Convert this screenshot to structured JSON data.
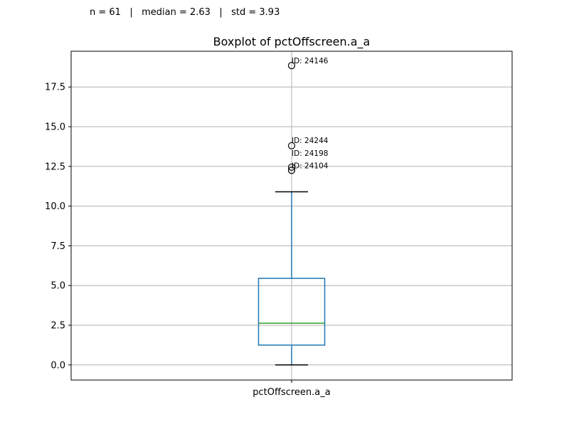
{
  "stats_line": "n = 61   |   median = 2.63   |   std = 3.93",
  "chart_data": {
    "type": "boxplot",
    "title": "Boxplot of pctOffscreen.a_a",
    "categories": [
      "pctOffscreen.a_a"
    ],
    "ylim": [
      -0.95,
      19.75
    ],
    "yticks": [
      0.0,
      2.5,
      5.0,
      7.5,
      10.0,
      12.5,
      15.0,
      17.5
    ],
    "ytick_labels": [
      "0.0",
      "2.5",
      "5.0",
      "7.5",
      "10.0",
      "12.5",
      "15.0",
      "17.5"
    ],
    "grid": true,
    "box": {
      "whisker_low": 0.0,
      "q1": 1.25,
      "median": 2.63,
      "q3": 5.45,
      "whisker_high": 10.9
    },
    "outliers": [
      {
        "value": 18.85,
        "label": "ID: 24146"
      },
      {
        "value": 13.8,
        "label": "ID: 24244"
      },
      {
        "value": 12.45,
        "label": "ID: 24198"
      },
      {
        "value": 12.25,
        "label": "ID: 24104"
      }
    ],
    "colors": {
      "box": "#1f77b4",
      "median": "#2ca02c",
      "whisker": "#1f77b4",
      "cap": "#000000",
      "grid": "#b0b0b0",
      "outlier_edge": "#000000"
    }
  }
}
